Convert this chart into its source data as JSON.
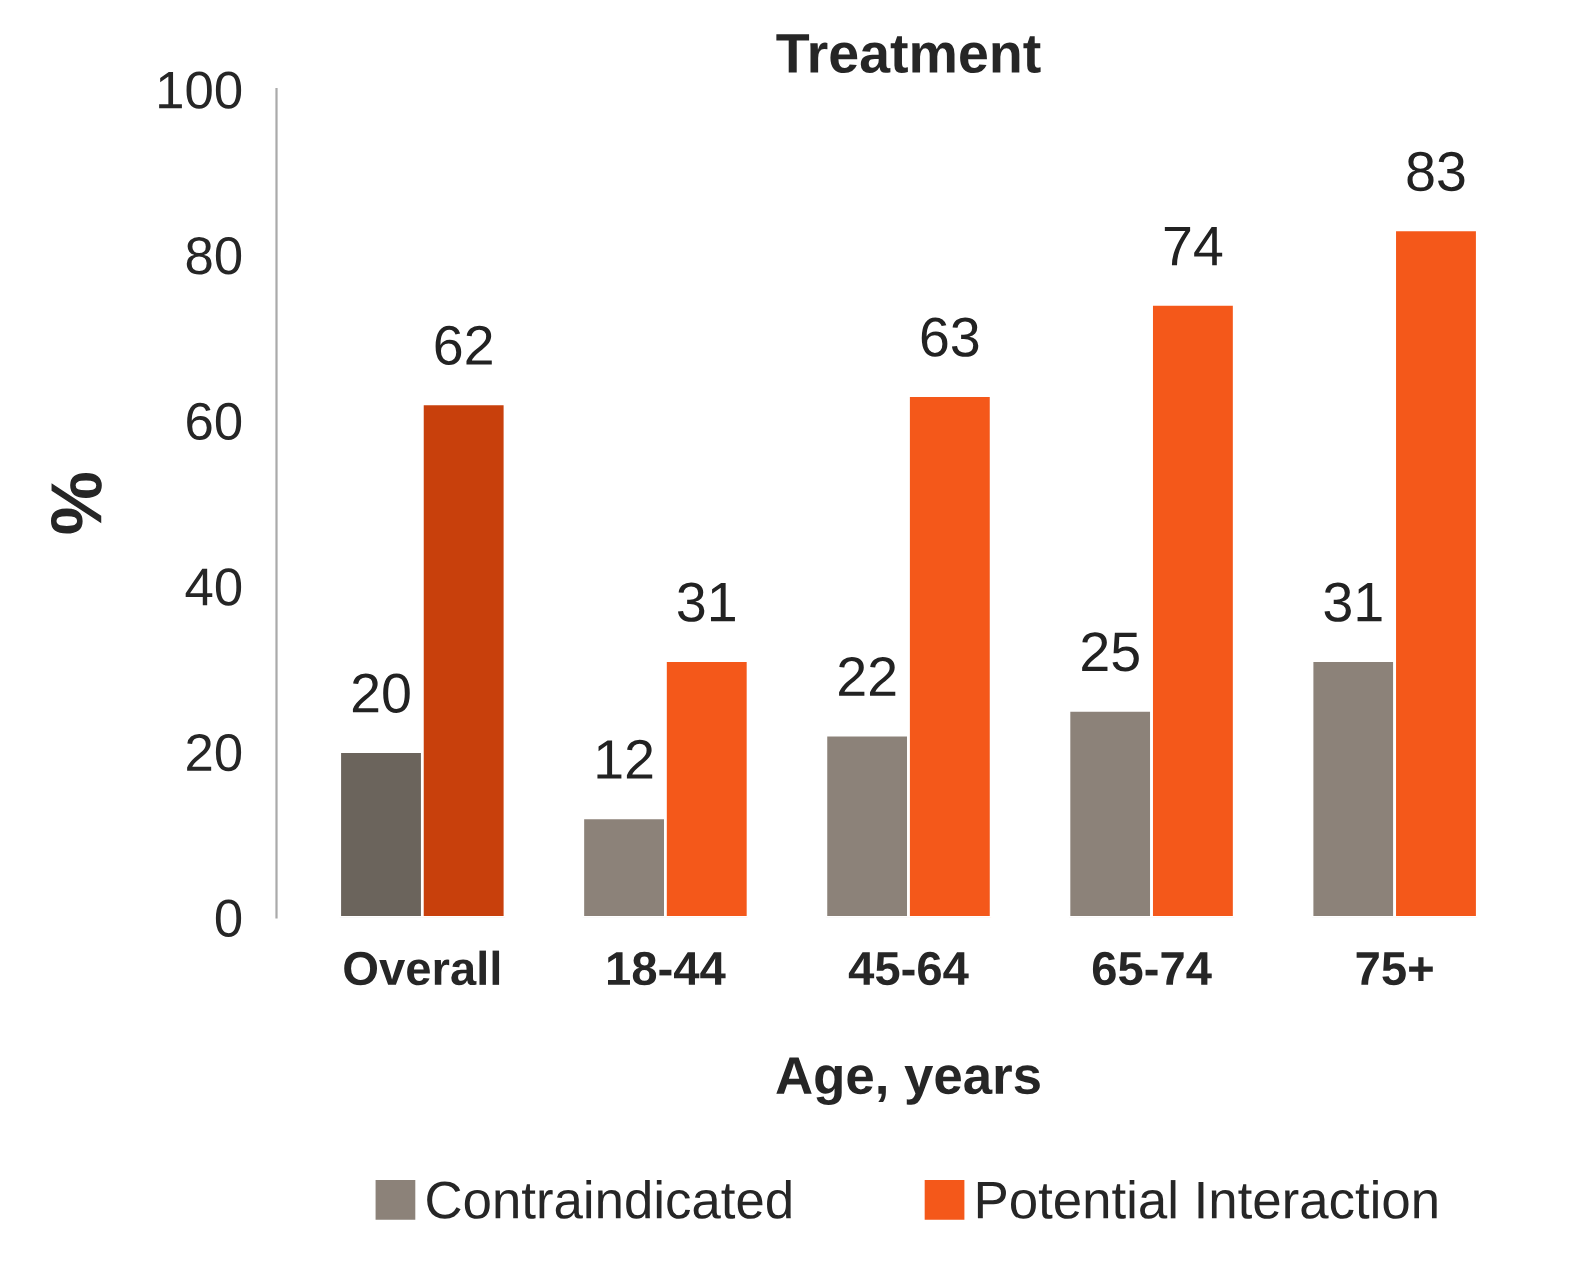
{
  "chart_data": {
    "type": "bar",
    "title": "Treatment",
    "xlabel": "Age, years",
    "ylabel": "%",
    "categories": [
      "Overall",
      "18-44",
      "45-64",
      "65-74",
      "75+"
    ],
    "series": [
      {
        "name": "Contraindicated",
        "color": "#8c8279",
        "colors": [
          "#6b645c",
          "#8c8279",
          "#8c8279",
          "#8c8279",
          "#8c8279"
        ],
        "values": [
          20,
          12,
          22,
          25,
          31
        ]
      },
      {
        "name": "Potential Interaction",
        "color": "#f4581a",
        "colors": [
          "#c8400c",
          "#f4581a",
          "#f4581a",
          "#f4581a",
          "#f4581a"
        ],
        "values": [
          62,
          31,
          63,
          74,
          83
        ]
      }
    ],
    "ylim": [
      0,
      100
    ],
    "yticks": [
      0,
      20,
      40,
      60,
      80,
      100
    ],
    "data_labels": true,
    "grid": false,
    "legend": "bottom"
  }
}
